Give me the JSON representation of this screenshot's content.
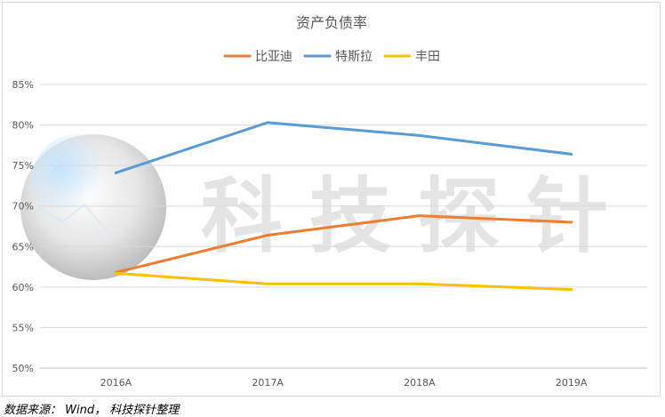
{
  "source_note": "数据来源： Wind， 科技探针整理",
  "watermark": "科技探针",
  "chart_data": {
    "type": "line",
    "title": "资产负债率",
    "categories": [
      "2016A",
      "2017A",
      "2018A",
      "2019A"
    ],
    "ylim": [
      0.5,
      0.85
    ],
    "yticks": [
      "50%",
      "55%",
      "60%",
      "65%",
      "70%",
      "75%",
      "80%",
      "85%"
    ],
    "ytick_values": [
      0.5,
      0.55,
      0.6,
      0.65,
      0.7,
      0.75,
      0.8,
      0.85
    ],
    "grid": true,
    "legend_position": "top",
    "series": [
      {
        "name": "比亚迪",
        "color": "#ED7D31",
        "values": [
          0.618,
          0.664,
          0.688,
          0.68
        ]
      },
      {
        "name": "特斯拉",
        "color": "#5B9BD5",
        "values": [
          0.741,
          0.803,
          0.787,
          0.764
        ]
      },
      {
        "name": "丰田",
        "color": "#FFC000",
        "values": [
          0.617,
          0.604,
          0.604,
          0.597
        ]
      }
    ]
  }
}
